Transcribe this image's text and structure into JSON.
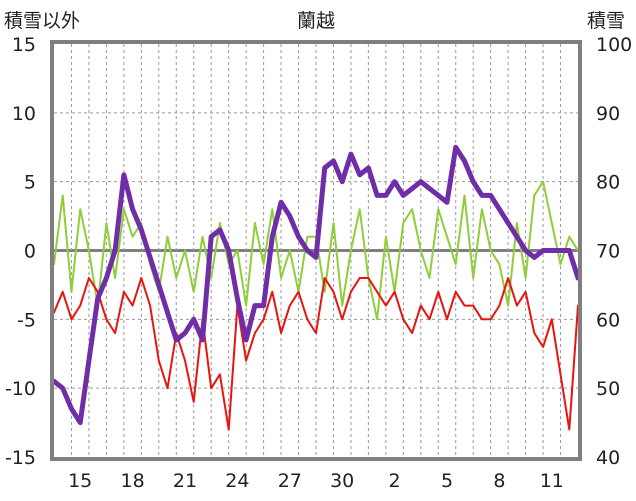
{
  "chart_data": {
    "type": "line",
    "title": "蘭越",
    "ylabel_left": "積雪以外",
    "ylabel_right": "積雪",
    "yticks_left": [
      "15",
      "10",
      "5",
      "0",
      "-5",
      "-10",
      "-15"
    ],
    "yticks_right": [
      "100",
      "90",
      "80",
      "70",
      "60",
      "50",
      "40"
    ],
    "ylim_left": [
      -15,
      15
    ],
    "ylim_right": [
      40,
      100
    ],
    "xticks": [
      "15",
      "18",
      "21",
      "24",
      "27",
      "30",
      "2",
      "5",
      "8",
      "11"
    ],
    "x_range": [
      0,
      30
    ],
    "grid": true,
    "colors": {
      "temperature_max": "#8fce3a",
      "temperature_min": "#e8140f",
      "snow_depth": "#6f2da8",
      "sunshine": "#f3b61a",
      "precipitation": "#1f6fb0",
      "frame": "#7f7f7f",
      "zero_line": "#7f7f7f"
    },
    "series": [
      {
        "key": "temperature_max",
        "axis": "left",
        "x": [
          0,
          0.5,
          1,
          1.5,
          2,
          2.5,
          3,
          3.5,
          4,
          4.5,
          5,
          5.5,
          6,
          6.5,
          7,
          7.5,
          8,
          8.5,
          9,
          9.5,
          10,
          10.5,
          11,
          11.5,
          12,
          12.5,
          13,
          13.5,
          14,
          14.5,
          15,
          15.5,
          16,
          16.5,
          17,
          17.5,
          18,
          18.5,
          19,
          19.5,
          20,
          20.5,
          21,
          21.5,
          22,
          22.5,
          23,
          23.5,
          24,
          24.5,
          25,
          25.5,
          26,
          26.5,
          27,
          27.5,
          28,
          28.5,
          29,
          29.5,
          30
        ],
        "values": [
          -1,
          4,
          -3,
          3,
          0,
          -4,
          2,
          -2,
          3,
          1,
          2,
          -1,
          -3,
          1,
          -2,
          0,
          -3,
          1,
          -2,
          2,
          -1,
          0,
          -4,
          2,
          -1,
          3,
          -2,
          0,
          -3,
          1,
          1,
          -3,
          2,
          -4,
          0,
          3,
          -2,
          -5,
          1,
          -3,
          2,
          3,
          0,
          -2,
          3,
          1,
          -1,
          4,
          -2,
          3,
          0,
          -1,
          -4,
          2,
          -2,
          4,
          5,
          2,
          -1,
          1,
          0
        ]
      },
      {
        "key": "temperature_min",
        "axis": "left",
        "x": [
          0,
          0.5,
          1,
          1.5,
          2,
          2.5,
          3,
          3.5,
          4,
          4.5,
          5,
          5.5,
          6,
          6.5,
          7,
          7.5,
          8,
          8.5,
          9,
          9.5,
          10,
          10.5,
          11,
          11.5,
          12,
          12.5,
          13,
          13.5,
          14,
          14.5,
          15,
          15.5,
          16,
          16.5,
          17,
          17.5,
          18,
          18.5,
          19,
          19.5,
          20,
          20.5,
          21,
          21.5,
          22,
          22.5,
          23,
          23.5,
          24,
          24.5,
          25,
          25.5,
          26,
          26.5,
          27,
          27.5,
          28,
          28.5,
          29,
          29.5,
          30
        ],
        "values": [
          -4.5,
          -3,
          -5,
          -4,
          -2,
          -3,
          -5,
          -6,
          -3,
          -4,
          -2,
          -4,
          -8,
          -10,
          -6,
          -8,
          -11,
          -5,
          -10,
          -9,
          -13,
          -4,
          -8,
          -6,
          -5,
          -3,
          -6,
          -4,
          -3,
          -5,
          -6,
          -2,
          -3,
          -5,
          -3,
          -2,
          -2,
          -3,
          -4,
          -3,
          -5,
          -6,
          -4,
          -5,
          -3,
          -5,
          -3,
          -4,
          -4,
          -5,
          -5,
          -4,
          -2,
          -4,
          -3,
          -6,
          -7,
          -5,
          -9,
          -13,
          -4
        ]
      },
      {
        "key": "snow_depth",
        "axis": "right",
        "x": [
          0,
          0.5,
          1,
          1.5,
          2,
          2.5,
          3,
          3.5,
          4,
          4.5,
          5,
          5.5,
          6,
          6.5,
          7,
          7.5,
          8,
          8.5,
          9,
          9.5,
          10,
          10.5,
          11,
          11.5,
          12,
          12.5,
          13,
          13.5,
          14,
          14.5,
          15,
          15.5,
          16,
          16.5,
          17,
          17.5,
          18,
          18.5,
          19,
          19.5,
          20,
          20.5,
          21,
          21.5,
          22,
          22.5,
          23,
          23.5,
          24,
          24.5,
          25,
          25.5,
          26,
          26.5,
          27,
          27.5,
          28,
          28.5,
          29,
          29.5,
          30
        ],
        "values": [
          51,
          50,
          47,
          45,
          54,
          63,
          66,
          70,
          81,
          76,
          73,
          69,
          65,
          61,
          57,
          58,
          60,
          57,
          72,
          73,
          70,
          63,
          57,
          62,
          62,
          72,
          77,
          75,
          72,
          70,
          69,
          82,
          83,
          80,
          84,
          81,
          82,
          78,
          78,
          80,
          78,
          79,
          80,
          79,
          78,
          77,
          85,
          83,
          80,
          78,
          78,
          76,
          74,
          72,
          70,
          69,
          70,
          70,
          70,
          70,
          66
        ]
      }
    ]
  }
}
